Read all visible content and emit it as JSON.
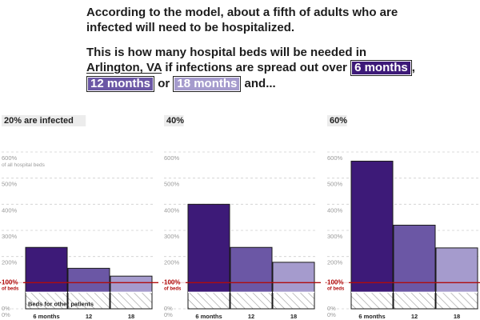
{
  "intro": {
    "line1": "According to the model, about a fifth of adults who are infected will need to be hospitalized.",
    "line2_prefix": "This is how many hospital beds will be needed in",
    "place": "Arlington, VA",
    "line2_suffix": "if infections are spread out over",
    "pill_6": "6 months",
    "sep1": ",",
    "pill_12": "12 months",
    "sep2": "or",
    "pill_18": "18 months",
    "ending": "and..."
  },
  "colors": {
    "six_months": "#3d1a78",
    "twelve_months": "#6b57a5",
    "eighteen_months": "#a59bcd",
    "reference_line": "#b00c0c"
  },
  "chart_data": [
    {
      "type": "bar",
      "title": "20% are infected",
      "categories": [
        "6 months",
        "12",
        "18"
      ],
      "values": [
        235,
        155,
        125
      ],
      "other_patients": 63,
      "ylim": [
        0,
        600
      ],
      "yticks": [
        "0%",
        "100%",
        "200%",
        "300%",
        "400%",
        "500%",
        "600%"
      ],
      "ytick_note": "of all hospital beds",
      "reference_value": 100,
      "reference_label": "100%",
      "reference_sublabel": "of beds",
      "other_label": "Beds for other patients",
      "grid": true
    },
    {
      "type": "bar",
      "title": "40%",
      "categories": [
        "6 months",
        "12",
        "18"
      ],
      "values": [
        400,
        235,
        178
      ],
      "other_patients": 63,
      "ylim": [
        0,
        600
      ],
      "yticks": [
        "0%",
        "100%",
        "200%",
        "300%",
        "400%",
        "500%",
        "600%"
      ],
      "reference_value": 100,
      "reference_label": "100%",
      "reference_sublabel": "of beds",
      "grid": true
    },
    {
      "type": "bar",
      "title": "60%",
      "categories": [
        "6 months",
        "12",
        "18"
      ],
      "values": [
        565,
        320,
        233
      ],
      "other_patients": 63,
      "ylim": [
        0,
        600
      ],
      "yticks": [
        "0%",
        "100%",
        "200%",
        "300%",
        "400%",
        "500%",
        "600%"
      ],
      "reference_value": 100,
      "reference_label": "100%",
      "reference_sublabel": "of beds",
      "grid": true
    }
  ]
}
